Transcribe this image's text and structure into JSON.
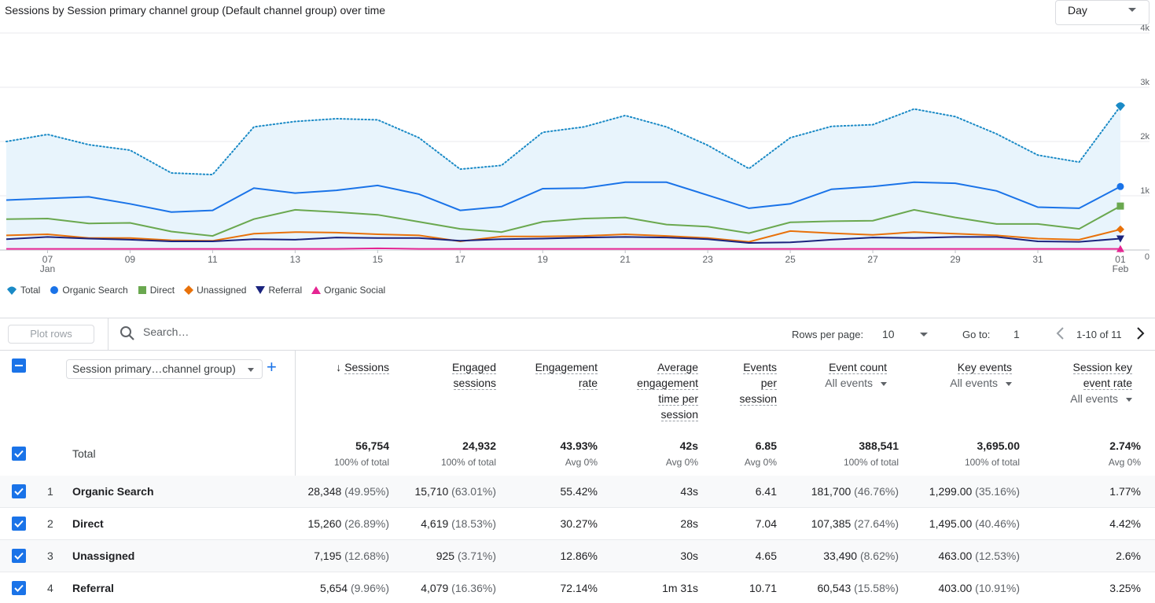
{
  "chart_title": "Sessions by Session primary channel group (Default channel group) over time",
  "period_select": {
    "value": "Day"
  },
  "chart_data": {
    "type": "line",
    "x": [
      "Jan 06",
      "Jan 07",
      "Jan 08",
      "Jan 09",
      "Jan 10",
      "Jan 11",
      "Jan 12",
      "Jan 13",
      "Jan 14",
      "Jan 15",
      "Jan 16",
      "Jan 17",
      "Jan 18",
      "Jan 19",
      "Jan 20",
      "Jan 21",
      "Jan 22",
      "Jan 23",
      "Jan 24",
      "Jan 25",
      "Jan 26",
      "Jan 27",
      "Jan 28",
      "Jan 29",
      "Jan 30",
      "Jan 31",
      "Feb 01",
      "Feb 02"
    ],
    "x_tick_labels": [
      {
        "day": "07",
        "month": "Jan"
      },
      {
        "day": "09",
        "month": ""
      },
      {
        "day": "11",
        "month": ""
      },
      {
        "day": "13",
        "month": ""
      },
      {
        "day": "15",
        "month": ""
      },
      {
        "day": "17",
        "month": ""
      },
      {
        "day": "19",
        "month": ""
      },
      {
        "day": "21",
        "month": ""
      },
      {
        "day": "23",
        "month": ""
      },
      {
        "day": "25",
        "month": ""
      },
      {
        "day": "27",
        "month": ""
      },
      {
        "day": "29",
        "month": ""
      },
      {
        "day": "31",
        "month": ""
      },
      {
        "day": "01",
        "month": "Feb"
      }
    ],
    "y_ticks": [
      "4k",
      "3k",
      "2k",
      "1k",
      "0"
    ],
    "ylim": [
      0,
      4000
    ],
    "grid": true,
    "legend_placement": "bottom-left",
    "series": [
      {
        "name": "Total",
        "color": "#1a8ac6",
        "style": "dotted-area",
        "marker": "pin",
        "values": [
          2000,
          2130,
          1940,
          1840,
          1420,
          1390,
          2270,
          2370,
          2420,
          2400,
          2070,
          1490,
          1560,
          2170,
          2270,
          2480,
          2270,
          1930,
          1500,
          2070,
          2280,
          2310,
          2600,
          2460,
          2140,
          1750,
          1620,
          2650
        ]
      },
      {
        "name": "Organic Search",
        "color": "#1a73e8",
        "style": "solid",
        "marker": "circle",
        "values": [
          920,
          950,
          980,
          850,
          700,
          730,
          1140,
          1050,
          1100,
          1190,
          1030,
          730,
          800,
          1130,
          1140,
          1250,
          1250,
          1010,
          770,
          850,
          1120,
          1170,
          1250,
          1230,
          1090,
          790,
          770,
          1170
        ]
      },
      {
        "name": "Direct",
        "color": "#6aa84f",
        "style": "solid",
        "marker": "square",
        "values": [
          570,
          580,
          490,
          500,
          340,
          260,
          570,
          740,
          700,
          650,
          520,
          390,
          330,
          520,
          580,
          600,
          470,
          430,
          310,
          510,
          530,
          540,
          740,
          600,
          480,
          480,
          390,
          810
        ]
      },
      {
        "name": "Unassigned",
        "color": "#e8710a",
        "style": "solid",
        "marker": "diamond",
        "values": [
          270,
          290,
          220,
          220,
          180,
          170,
          300,
          330,
          320,
          290,
          270,
          160,
          250,
          250,
          260,
          290,
          260,
          220,
          150,
          350,
          310,
          280,
          330,
          300,
          270,
          210,
          190,
          380
        ]
      },
      {
        "name": "Referral",
        "color": "#1a237e",
        "style": "solid",
        "marker": "triangle-down",
        "values": [
          200,
          240,
          210,
          190,
          160,
          160,
          200,
          190,
          230,
          220,
          220,
          170,
          200,
          210,
          230,
          240,
          230,
          200,
          130,
          140,
          190,
          230,
          220,
          240,
          240,
          160,
          150,
          210
        ]
      },
      {
        "name": "Organic Social",
        "color": "#e52592",
        "style": "solid",
        "marker": "triangle-up",
        "values": [
          20,
          20,
          20,
          20,
          20,
          20,
          20,
          20,
          20,
          30,
          20,
          20,
          20,
          20,
          20,
          20,
          20,
          20,
          20,
          20,
          20,
          20,
          20,
          20,
          20,
          20,
          20,
          20
        ]
      }
    ]
  },
  "legend": [
    {
      "name": "Total"
    },
    {
      "name": "Organic Search"
    },
    {
      "name": "Direct"
    },
    {
      "name": "Unassigned"
    },
    {
      "name": "Referral"
    },
    {
      "name": "Organic Social"
    }
  ],
  "toolbar": {
    "plot_rows": "Plot rows",
    "search_placeholder": "Search…",
    "rows_per_page_label": "Rows per page:",
    "rows_per_page_value": "10",
    "goto_label": "Go to:",
    "goto_value": "1",
    "page_range": "1-10 of 11"
  },
  "table": {
    "dimension_select": "Session primary…channel group)",
    "columns": [
      {
        "lines": [
          "Sessions"
        ],
        "sort": "desc"
      },
      {
        "lines": [
          "Engaged",
          "sessions"
        ]
      },
      {
        "lines": [
          "Engagement",
          "rate"
        ]
      },
      {
        "lines": [
          "Average",
          "engagement",
          "time per",
          "session"
        ]
      },
      {
        "lines": [
          "Events",
          "per",
          "session"
        ]
      },
      {
        "lines": [
          "Event count"
        ],
        "filter": "All events"
      },
      {
        "lines": [
          "Key events"
        ],
        "filter": "All events"
      },
      {
        "lines": [
          "Session key",
          "event rate"
        ],
        "filter": "All events"
      }
    ],
    "total": {
      "label": "Total",
      "values": [
        "56,754",
        "24,932",
        "43.93%",
        "42s",
        "6.85",
        "388,541",
        "3,695.00",
        "2.74%"
      ],
      "subs": [
        "100% of total",
        "100% of total",
        "Avg 0%",
        "Avg 0%",
        "Avg 0%",
        "100% of total",
        "100% of total",
        "Avg 0%"
      ]
    },
    "rows": [
      {
        "num": "1",
        "name": "Organic Search",
        "cells": [
          [
            "28,348",
            "(49.95%)"
          ],
          [
            "15,710",
            "(63.01%)"
          ],
          [
            "55.42%",
            ""
          ],
          [
            "43s",
            ""
          ],
          [
            "6.41",
            ""
          ],
          [
            "181,700",
            "(46.76%)"
          ],
          [
            "1,299.00",
            "(35.16%)"
          ],
          [
            "1.77%",
            ""
          ]
        ]
      },
      {
        "num": "2",
        "name": "Direct",
        "cells": [
          [
            "15,260",
            "(26.89%)"
          ],
          [
            "4,619",
            "(18.53%)"
          ],
          [
            "30.27%",
            ""
          ],
          [
            "28s",
            ""
          ],
          [
            "7.04",
            ""
          ],
          [
            "107,385",
            "(27.64%)"
          ],
          [
            "1,495.00",
            "(40.46%)"
          ],
          [
            "4.42%",
            ""
          ]
        ]
      },
      {
        "num": "3",
        "name": "Unassigned",
        "cells": [
          [
            "7,195",
            "(12.68%)"
          ],
          [
            "925",
            "(3.71%)"
          ],
          [
            "12.86%",
            ""
          ],
          [
            "30s",
            ""
          ],
          [
            "4.65",
            ""
          ],
          [
            "33,490",
            "(8.62%)"
          ],
          [
            "463.00",
            "(12.53%)"
          ],
          [
            "2.6%",
            ""
          ]
        ]
      },
      {
        "num": "4",
        "name": "Referral",
        "cells": [
          [
            "5,654",
            "(9.96%)"
          ],
          [
            "4,079",
            "(16.36%)"
          ],
          [
            "72.14%",
            ""
          ],
          [
            "1m 31s",
            ""
          ],
          [
            "10.71",
            ""
          ],
          [
            "60,543",
            "(15.58%)"
          ],
          [
            "403.00",
            "(10.91%)"
          ],
          [
            "3.25%",
            ""
          ]
        ]
      }
    ]
  }
}
